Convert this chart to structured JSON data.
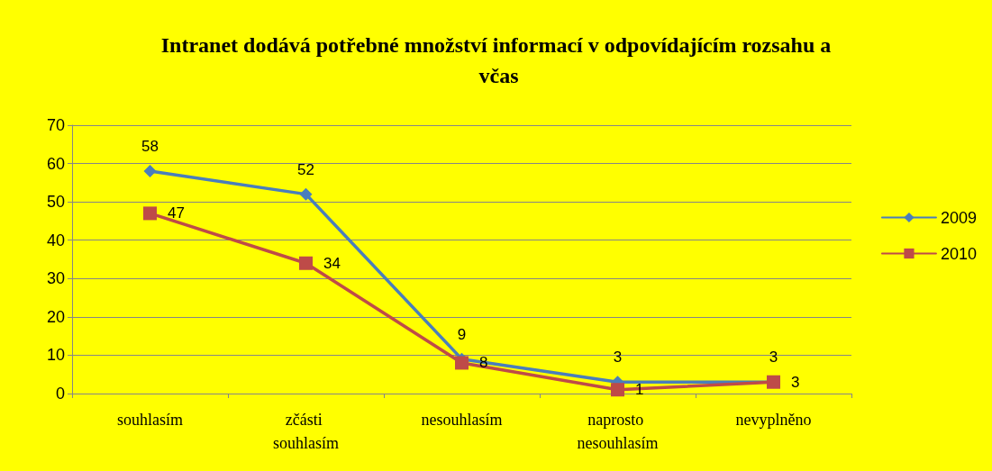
{
  "chart_data": {
    "type": "line",
    "title": "Intranet dodává potřebné množství informací v odpovídajícím rozsahu a včas",
    "categories": [
      "souhlasím",
      "zčásti souhlasím",
      "nesouhlasím",
      "naprosto nesouhlasím",
      "nevyplněno"
    ],
    "series": [
      {
        "name": "2009",
        "color": "#4a7ebb",
        "marker": "diamond",
        "values": [
          58,
          52,
          9,
          3,
          3
        ]
      },
      {
        "name": "2010",
        "color": "#be4b48",
        "marker": "square",
        "values": [
          47,
          34,
          8,
          1,
          3
        ]
      }
    ],
    "ylim": [
      0,
      70
    ],
    "yticks": [
      0,
      10,
      20,
      30,
      40,
      50,
      60,
      70
    ],
    "grid": "y",
    "legend": "right",
    "data_labels": true
  }
}
